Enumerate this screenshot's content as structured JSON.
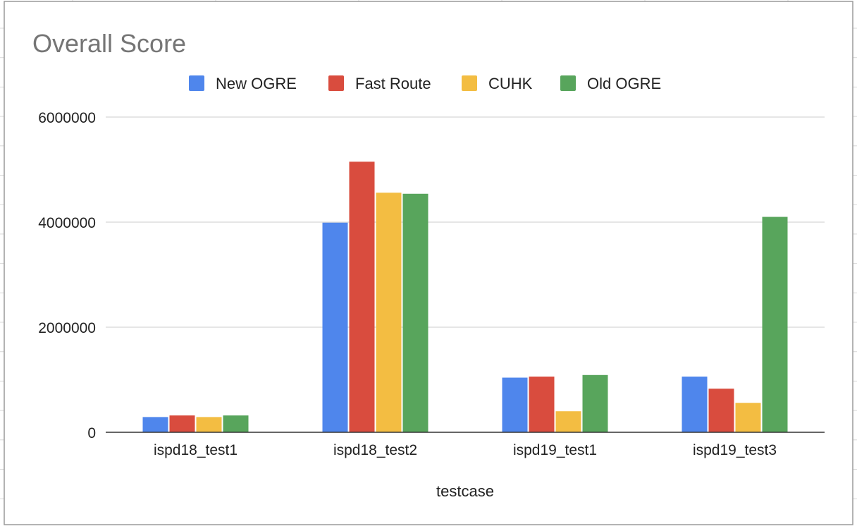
{
  "chart_data": {
    "type": "bar",
    "title": "Overall Score",
    "xlabel": "testcase",
    "ylabel": "",
    "categories": [
      "ispd18_test1",
      "ispd18_test2",
      "ispd19_test1",
      "ispd19_test3"
    ],
    "series": [
      {
        "name": "New OGRE",
        "color": "#4f86ec",
        "values": [
          290000,
          3990000,
          1040000,
          1060000
        ]
      },
      {
        "name": "Fast Route",
        "color": "#d94c3e",
        "values": [
          320000,
          5150000,
          1060000,
          830000
        ]
      },
      {
        "name": "CUHK",
        "color": "#f3bd42",
        "values": [
          290000,
          4560000,
          400000,
          560000
        ]
      },
      {
        "name": "Old OGRE",
        "color": "#58a55c",
        "values": [
          320000,
          4540000,
          1090000,
          4100000
        ]
      }
    ],
    "ylim": [
      0,
      6000000
    ],
    "yticks": [
      "0",
      "2000000",
      "4000000",
      "6000000"
    ],
    "grid": true,
    "legend_position": "top"
  }
}
